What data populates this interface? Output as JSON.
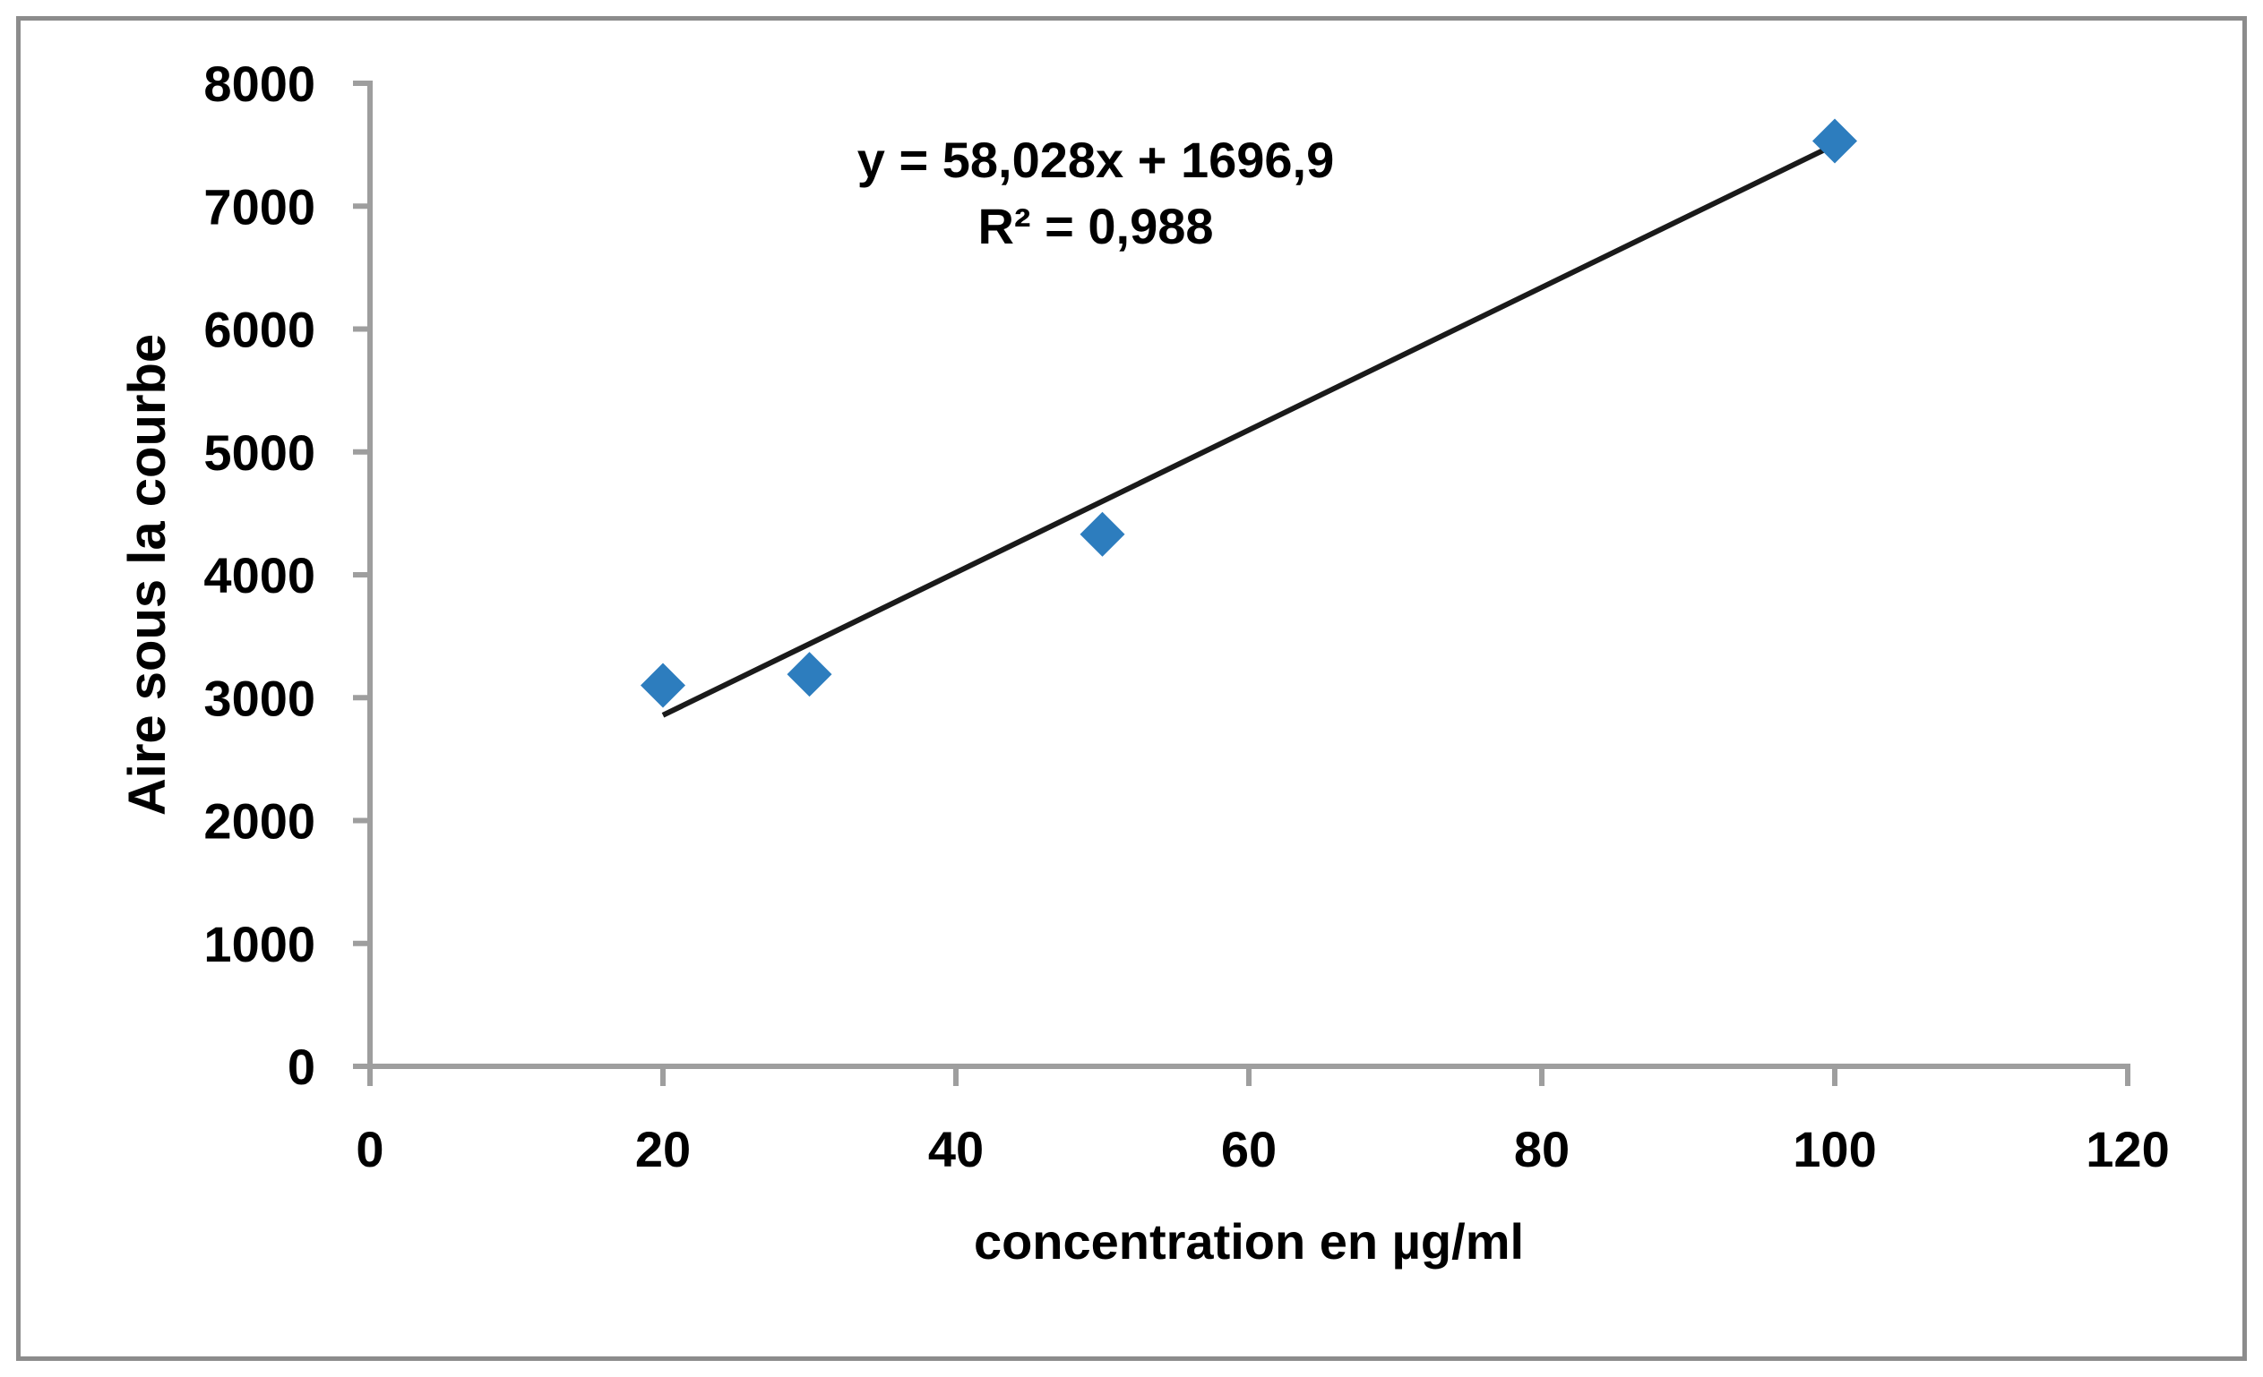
{
  "colors": {
    "background": "#FFFFFF",
    "frame_border": "#8C8C8C",
    "axis": "#9E9E9E",
    "text": "#000000"
  },
  "chart_data": {
    "type": "scatter",
    "title": "",
    "xlabel": "concentration en µg/ml",
    "ylabel": "Aire sous la courbe",
    "xlim": [
      0,
      120
    ],
    "ylim": [
      0,
      8000
    ],
    "x_ticks": [
      0,
      20,
      40,
      60,
      80,
      100,
      120
    ],
    "y_ticks": [
      0,
      1000,
      2000,
      3000,
      4000,
      5000,
      6000,
      7000,
      8000
    ],
    "grid": false,
    "legend": false,
    "series": [
      {
        "name": "Aire sous la courbe",
        "marker": "diamond",
        "color": "#2D7DBE",
        "points": [
          [
            20,
            3100
          ],
          [
            30,
            3190
          ],
          [
            50,
            4330
          ],
          [
            100,
            7530
          ]
        ]
      }
    ],
    "trendline": {
      "slope": 58.028,
      "intercept": 1696.9,
      "x_start": 20,
      "x_end": 100,
      "color": "#1A1A1A",
      "equation_label": "y = 58,028x + 1696,9",
      "r_squared_label": "R² = 0,988"
    }
  }
}
